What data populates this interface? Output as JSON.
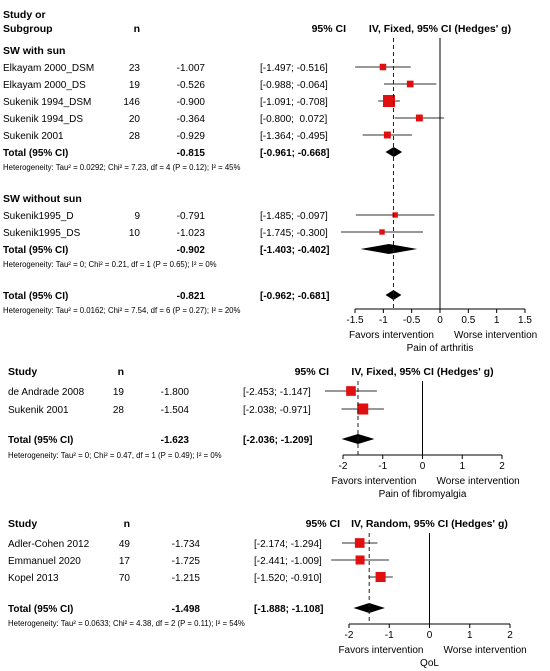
{
  "chart_data": [
    {
      "type": "forest",
      "title": "IV, Fixed, 95% CI (Hedges' g)",
      "header": {
        "study_line1": "Study or",
        "study_line2": "Subgroup",
        "n": "n",
        "ci": "95% CI"
      },
      "xlabel": "Pain of arthritis",
      "favors_left": "Favors intervention",
      "favors_right": "Worse intervention",
      "xlim": [
        -1.5,
        1.5
      ],
      "ticks": [
        "-1.5",
        "-1",
        "-0.5",
        "0",
        "0.5",
        "1",
        "1.5"
      ],
      "tick_values": [
        -1.5,
        -1,
        -0.5,
        0,
        0.5,
        1,
        1.5
      ],
      "pooled_line": -0.821,
      "rows": [
        {
          "kind": "heading",
          "label": "SW with sun"
        },
        {
          "kind": "study",
          "label": "Elkayam 2000_DSM",
          "n": "23",
          "est_text": "-1.007",
          "ci_text": "[-1.497; -0.516]",
          "est": -1.007,
          "lo": -1.497,
          "hi": -0.516,
          "weight": 0.15
        },
        {
          "kind": "study",
          "label": "Elkayam 2000_DS",
          "n": "19",
          "est_text": "-0.526",
          "ci_text": "[-0.988; -0.064]",
          "est": -0.526,
          "lo": -0.988,
          "hi": -0.064,
          "weight": 0.17
        },
        {
          "kind": "study",
          "label": "Sukenik 1994_DSM",
          "n": "146",
          "est_text": "-0.900",
          "ci_text": "[-1.091; -0.708]",
          "est": -0.9,
          "lo": -1.091,
          "hi": -0.708,
          "weight": 1.0
        },
        {
          "kind": "study",
          "label": "Sukenik 1994_DS",
          "n": "20",
          "est_text": "-0.364",
          "ci_text": "[-0.800;  0.072]",
          "est": -0.364,
          "lo": -0.8,
          "hi": 0.072,
          "weight": 0.19
        },
        {
          "kind": "study",
          "label": "Sukenik 2001",
          "n": "28",
          "est_text": "-0.929",
          "ci_text": "[-1.364; -0.495]",
          "est": -0.929,
          "lo": -1.364,
          "hi": -0.495,
          "weight": 0.19
        },
        {
          "kind": "total",
          "label": "Total (95% CI)",
          "est_text": "-0.815",
          "ci_text": "[-0.961; -0.668]",
          "est": -0.815,
          "lo": -0.961,
          "hi": -0.668
        },
        {
          "kind": "het",
          "label": "Heterogeneity: Tau² = 0.0292; Chi² = 7.23, df = 4 (P = 0.12); I² = 45%"
        },
        {
          "kind": "gap"
        },
        {
          "kind": "heading",
          "label": "SW without sun"
        },
        {
          "kind": "study",
          "label": "Sukenik1995_D",
          "n": "9",
          "est_text": "-0.791",
          "ci_text": "[-1.485; -0.097]",
          "est": -0.791,
          "lo": -1.485,
          "hi": -0.097,
          "weight": 0.07
        },
        {
          "kind": "study",
          "label": "Sukenik1995_DS",
          "n": "10",
          "est_text": "-1.023",
          "ci_text": "[-1.745; -0.300]",
          "est": -1.023,
          "lo": -1.745,
          "hi": -0.3,
          "weight": 0.07
        },
        {
          "kind": "total",
          "label": "Total (95% CI)",
          "est_text": "-0.902",
          "ci_text": "[-1.403; -0.402]",
          "est": -0.902,
          "lo": -1.403,
          "hi": -0.402
        },
        {
          "kind": "het",
          "label": "Heterogeneity: Tau² = 0; Chi² = 0.21, df = 1 (P = 0.65); I² = 0%"
        },
        {
          "kind": "gap"
        },
        {
          "kind": "total",
          "label": "Total (95% CI)",
          "est_text": "-0.821",
          "ci_text": "[-0.962; -0.681]",
          "est": -0.821,
          "lo": -0.962,
          "hi": -0.681
        },
        {
          "kind": "het",
          "label": "Heterogeneity: Tau² = 0.0162; Chi² = 7.54, df = 6 (P = 0.27); I² = 20%"
        }
      ]
    },
    {
      "type": "forest",
      "title": "IV, Fixed, 95% CI (Hedges' g)",
      "header": {
        "study_line1": "Study",
        "study_line2": "",
        "n": "n",
        "ci": "95% CI"
      },
      "xlabel": "Pain of fibromyalgia",
      "favors_left": "Favors intervention",
      "favors_right": "Worse intervention",
      "xlim": [
        -2,
        2
      ],
      "ticks": [
        "-2",
        "-1",
        "0",
        "1",
        "2"
      ],
      "tick_values": [
        -2,
        -1,
        0,
        1,
        2
      ],
      "pooled_line": -1.623,
      "rows": [
        {
          "kind": "study",
          "label": "de Andrade 2008",
          "n": "19",
          "est_text": "-1.800",
          "ci_text": "[-2.453; -1.147]",
          "est": -1.8,
          "lo": -2.453,
          "hi": -1.147,
          "weight": 0.55
        },
        {
          "kind": "study",
          "label": "Sukenik 2001",
          "n": "28",
          "est_text": "-1.504",
          "ci_text": "[-2.038; -0.971]",
          "est": -1.504,
          "lo": -2.038,
          "hi": -0.971,
          "weight": 0.8
        },
        {
          "kind": "gap"
        },
        {
          "kind": "total",
          "label": "Total (95% CI)",
          "est_text": "-1.623",
          "ci_text": "[-2.036; -1.209]",
          "est": -1.623,
          "lo": -2.036,
          "hi": -1.209
        },
        {
          "kind": "het",
          "label": "Heterogeneity: Tau² = 0; Chi² = 0.47, df = 1 (P = 0.49); I² = 0%"
        }
      ]
    },
    {
      "type": "forest",
      "title": "IV, Random, 95% CI (Hedges' g)",
      "header": {
        "study_line1": "Study",
        "study_line2": "",
        "n": "n",
        "ci": "95% CI"
      },
      "xlabel": "QoL",
      "favors_left": "Favors intervention",
      "favors_right": "Worse intervention",
      "xlim": [
        -2,
        2
      ],
      "ticks": [
        "-2",
        "-1",
        "0",
        "1",
        "2"
      ],
      "tick_values": [
        -2,
        -1,
        0,
        1,
        2
      ],
      "pooled_line": -1.498,
      "rows": [
        {
          "kind": "study",
          "label": "Adler-Cohen 2012",
          "n": "49",
          "est_text": "-1.734",
          "ci_text": "[-2.174; -1.294]",
          "est": -1.734,
          "lo": -2.174,
          "hi": -1.294,
          "weight": 0.55
        },
        {
          "kind": "study",
          "label": "Emmanuel 2020",
          "n": "17",
          "est_text": "-1.725",
          "ci_text": "[-2.441; -1.009]",
          "est": -1.725,
          "lo": -2.441,
          "hi": -1.009,
          "weight": 0.45
        },
        {
          "kind": "study",
          "label": "Kopel 2013",
          "n": "70",
          "est_text": "-1.215",
          "ci_text": "[-1.520; -0.910]",
          "est": -1.215,
          "lo": -1.52,
          "hi": -0.91,
          "weight": 0.62
        },
        {
          "kind": "gap"
        },
        {
          "kind": "total",
          "label": "Total (95% CI)",
          "est_text": "-1.498",
          "ci_text": "[-1.888; -1.108]",
          "est": -1.498,
          "lo": -1.888,
          "hi": -1.108
        },
        {
          "kind": "het",
          "label": "Heterogeneity: Tau² = 0.0633; Chi² = 4.38, df = 2 (P = 0.11); I² = 54%"
        }
      ]
    }
  ],
  "colors": {
    "square": "#e01010",
    "line": "#000000",
    "ci_line": "#303030"
  }
}
